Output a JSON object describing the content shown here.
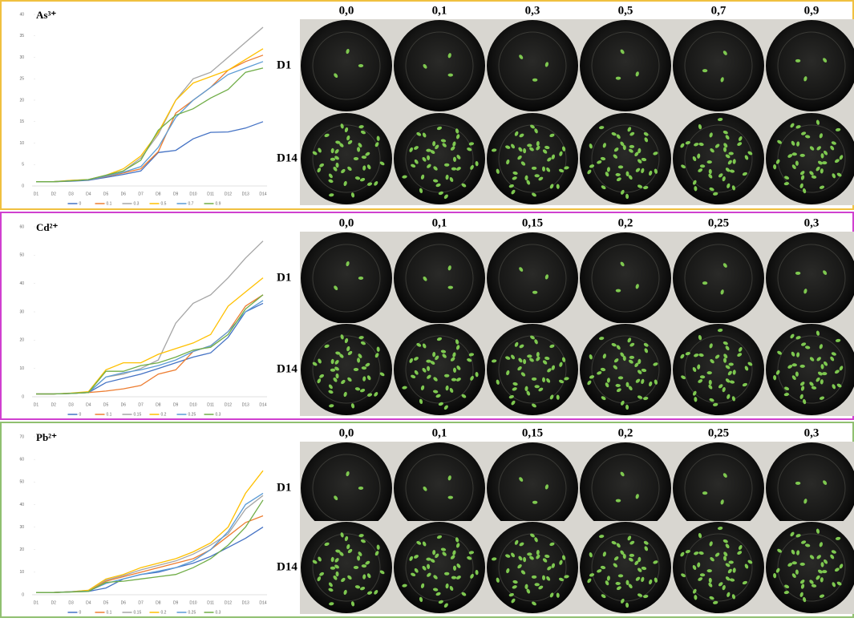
{
  "chart_data": [
    {
      "type": "line",
      "title": "As³⁺",
      "categories": [
        "D1",
        "D2",
        "D3",
        "D4",
        "D5",
        "D6",
        "D7",
        "D8",
        "D9",
        "D10",
        "D11",
        "D12",
        "D13",
        "D14"
      ],
      "ylim": [
        0,
        40
      ],
      "yticks": [
        0,
        5,
        10,
        15,
        20,
        25,
        30,
        35,
        40
      ],
      "series": [
        {
          "name": "0",
          "color": "#4472c4",
          "values": [
            1,
            1,
            1.1,
            1.3,
            2,
            2.7,
            3.5,
            7.8,
            8.3,
            11,
            12.5,
            12.6,
            13.5,
            15
          ]
        },
        {
          "name": "0.1",
          "color": "#ed7d31",
          "values": [
            1,
            1,
            1.2,
            1.4,
            2.2,
            3,
            4,
            8,
            17,
            20,
            23,
            27,
            29,
            30.5
          ]
        },
        {
          "name": "0.3",
          "color": "#a5a5a5",
          "values": [
            1,
            1,
            1.3,
            1.5,
            2.5,
            3.5,
            6.5,
            12,
            20,
            25,
            26.5,
            30,
            33.5,
            37
          ]
        },
        {
          "name": "0.5",
          "color": "#ffc000",
          "values": [
            1,
            1,
            1.3,
            1.5,
            2.5,
            4,
            7,
            12.5,
            20,
            24,
            25.5,
            27,
            29.5,
            32
          ]
        },
        {
          "name": "0.7",
          "color": "#5b9bd5",
          "values": [
            1,
            1,
            1.2,
            1.4,
            2.3,
            3.2,
            4.5,
            9,
            16,
            20,
            23,
            26,
            27.5,
            29
          ]
        },
        {
          "name": "0.9",
          "color": "#70ad47",
          "values": [
            1,
            1,
            1.2,
            1.5,
            2.5,
            3.5,
            6,
            13,
            16.5,
            18,
            20.5,
            22.5,
            26.5,
            27.5
          ]
        }
      ]
    },
    {
      "type": "line",
      "title": "Cd²⁺",
      "categories": [
        "D1",
        "D2",
        "D3",
        "D4",
        "D5",
        "D6",
        "D7",
        "D8",
        "D9",
        "D10",
        "D11",
        "D12",
        "D13",
        "D14"
      ],
      "ylim": [
        0,
        60
      ],
      "yticks": [
        0,
        10,
        20,
        30,
        40,
        50,
        60
      ],
      "series": [
        {
          "name": "0",
          "color": "#4472c4",
          "values": [
            1,
            1,
            1.2,
            1.5,
            5,
            6.5,
            8,
            10,
            12,
            14,
            15.5,
            21,
            30,
            33
          ]
        },
        {
          "name": "0.1",
          "color": "#ed7d31",
          "values": [
            1,
            1,
            1.2,
            1.5,
            2,
            2.8,
            4,
            8,
            9.5,
            16,
            18,
            23,
            32,
            36
          ]
        },
        {
          "name": "0.15",
          "color": "#a5a5a5",
          "values": [
            1,
            1,
            1.2,
            1.5,
            7,
            8,
            10,
            13,
            26,
            33,
            36,
            42,
            49,
            55
          ]
        },
        {
          "name": "0.2",
          "color": "#ffc000",
          "values": [
            1,
            1,
            1.3,
            1.8,
            9.5,
            12,
            12,
            15,
            17,
            19,
            22,
            32,
            37,
            42
          ]
        },
        {
          "name": "0.25",
          "color": "#5b9bd5",
          "values": [
            1,
            1,
            1.2,
            1.5,
            7,
            8.5,
            9.5,
            11,
            13,
            16,
            18,
            23,
            30,
            34
          ]
        },
        {
          "name": "0.3",
          "color": "#70ad47",
          "values": [
            1,
            1,
            1.2,
            1.5,
            9,
            9,
            11,
            12,
            14,
            16.5,
            17.5,
            22,
            31,
            36
          ]
        }
      ]
    },
    {
      "type": "line",
      "title": "Pb²⁺",
      "categories": [
        "D1",
        "D2",
        "D3",
        "D4",
        "D5",
        "D6",
        "D7",
        "D8",
        "D9",
        "D10",
        "D11",
        "D12",
        "D13",
        "D14"
      ],
      "ylim": [
        0,
        70
      ],
      "yticks": [
        0,
        10,
        20,
        30,
        40,
        50,
        60,
        70
      ],
      "series": [
        {
          "name": "0",
          "color": "#4472c4",
          "values": [
            1,
            1,
            1.3,
            1.5,
            3,
            7,
            9,
            10,
            12,
            14,
            17,
            21,
            25,
            30
          ]
        },
        {
          "name": "0.1",
          "color": "#ed7d31",
          "values": [
            1,
            1,
            1.3,
            1.8,
            6,
            8,
            10,
            12,
            14,
            16,
            20,
            26,
            32,
            35
          ]
        },
        {
          "name": "0.15",
          "color": "#a5a5a5",
          "values": [
            1,
            1,
            1.3,
            2,
            6.5,
            8.5,
            11,
            13,
            15,
            18,
            22,
            27,
            38,
            44
          ]
        },
        {
          "name": "0.2",
          "color": "#ffc000",
          "values": [
            1,
            1,
            1.4,
            2,
            7,
            9,
            12,
            14,
            16,
            19,
            23,
            30,
            45,
            55
          ]
        },
        {
          "name": "0.25",
          "color": "#5b9bd5",
          "values": [
            1,
            1,
            1.3,
            1.6,
            5,
            7,
            9,
            10.5,
            12,
            15,
            20,
            28,
            40,
            45
          ]
        },
        {
          "name": "0.3",
          "color": "#70ad47",
          "values": [
            1,
            1,
            1.2,
            1.5,
            5.5,
            6,
            7,
            8,
            9,
            12,
            16,
            22,
            30,
            42
          ]
        }
      ]
    }
  ],
  "photo_panels": [
    {
      "concentrations": [
        "0,0",
        "0,1",
        "0,3",
        "0,5",
        "0,7",
        "0,9"
      ],
      "rows": [
        "D1",
        "D14"
      ]
    },
    {
      "concentrations": [
        "0,0",
        "0,1",
        "0,15",
        "0,2",
        "0,25",
        "0,3"
      ],
      "rows": [
        "D1",
        "D14"
      ]
    },
    {
      "concentrations": [
        "0,0",
        "0,1",
        "0,15",
        "0,2",
        "0,25",
        "0,3"
      ],
      "rows": [
        "D1",
        "D14"
      ]
    }
  ]
}
